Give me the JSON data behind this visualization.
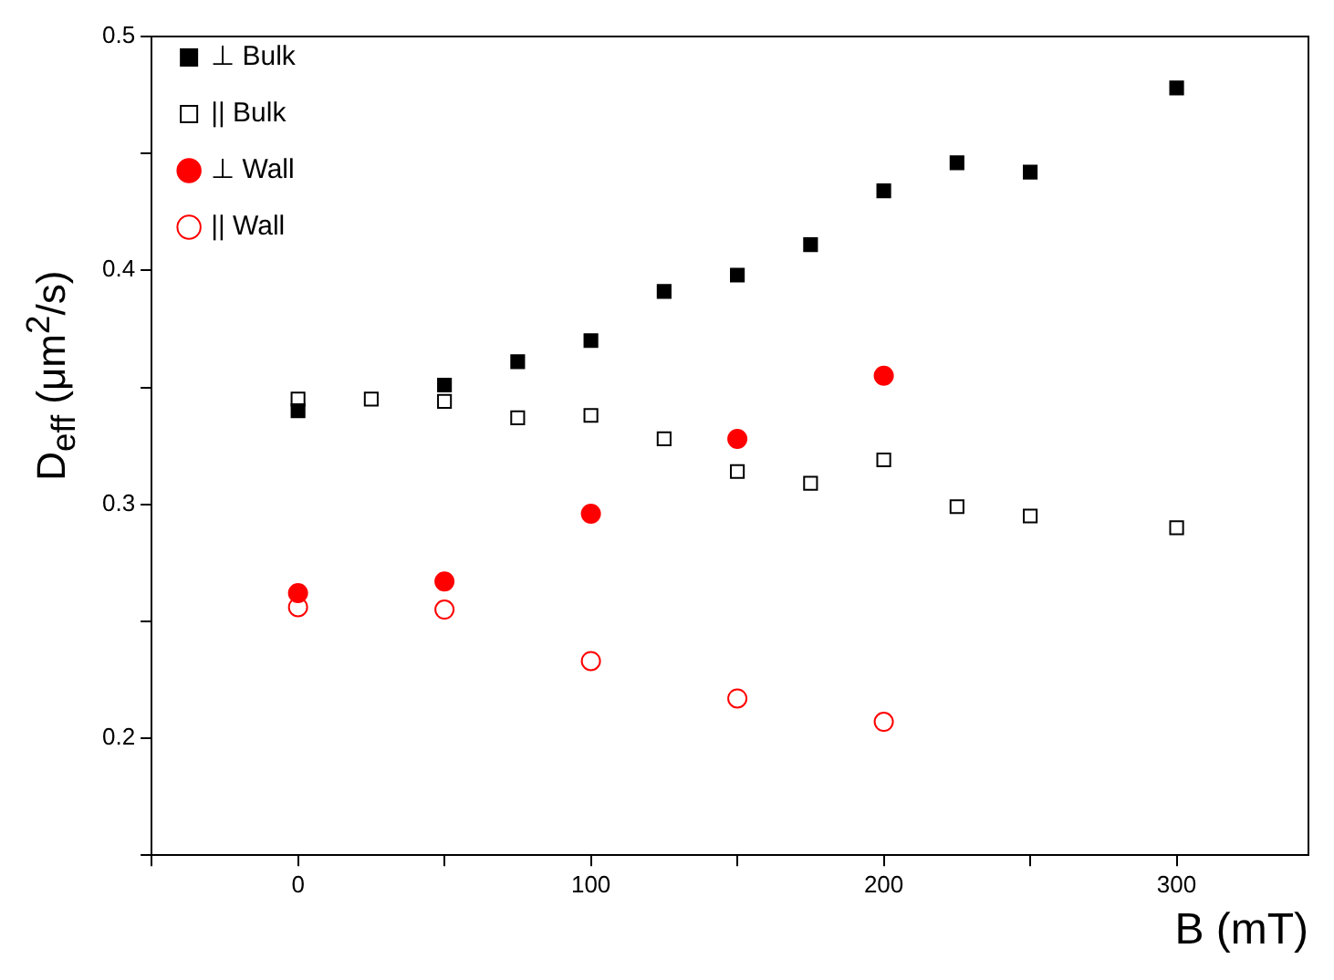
{
  "chart_data": {
    "type": "scatter",
    "xlabel": "B (mT)",
    "ylabel": "D$_{eff}$ (μm$^{2}$/s)",
    "xlim": [
      -50,
      345
    ],
    "ylim": [
      0.15,
      0.5
    ],
    "xticks": [
      {
        "value": -50,
        "label": null
      },
      0,
      {
        "value": 50,
        "label": null
      },
      100,
      {
        "value": 150,
        "label": null
      },
      200,
      {
        "value": 250,
        "label": null
      },
      300
    ],
    "yticks": [
      {
        "value": 0.15,
        "label": null
      },
      0.2,
      {
        "value": 0.25,
        "label": null
      },
      0.3,
      {
        "value": 0.35,
        "label": null
      },
      0.4,
      {
        "value": 0.45,
        "label": null
      },
      0.5
    ],
    "grid": false,
    "legend": "top left",
    "series": [
      {
        "name": "⊥ Bulk",
        "color": "#000000",
        "marker": "square",
        "x": [
          0,
          50,
          75,
          100,
          125,
          150,
          175,
          200,
          225,
          250,
          300
        ],
        "values": [
          0.34,
          0.351,
          0.361,
          0.37,
          0.391,
          0.398,
          0.411,
          0.434,
          0.446,
          0.442,
          0.478
        ]
      },
      {
        "name": "|| Bulk",
        "color": "#000000",
        "marker": "square",
        "x": [
          0,
          25,
          50,
          75,
          100,
          125,
          150,
          175,
          200,
          225,
          250,
          300
        ],
        "values": [
          0.345,
          0.345,
          0.344,
          0.337,
          0.338,
          0.328,
          0.314,
          0.309,
          0.319,
          0.299,
          0.295,
          0.29
        ]
      },
      {
        "name": "⊥ Wall",
        "color": "#ff0000",
        "marker": "circle",
        "x": [
          0,
          50,
          100,
          150,
          200
        ],
        "values": [
          0.262,
          0.267,
          0.296,
          0.328,
          0.355
        ]
      },
      {
        "name": "|| Wall",
        "color": "#ff0000",
        "marker": "circle",
        "x": [
          0,
          50,
          100,
          150,
          200
        ],
        "values": [
          0.256,
          0.255,
          0.233,
          0.217,
          0.207
        ]
      }
    ]
  }
}
